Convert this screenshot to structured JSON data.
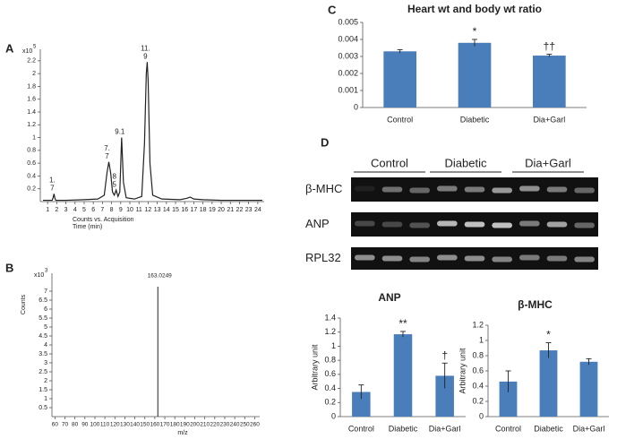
{
  "labels": [
    "A",
    "B",
    "C",
    "D"
  ],
  "chart_data": [
    {
      "type": "line",
      "y_multiplier": {
        "base": "x10",
        "exponent": "5"
      },
      "xlabel": [
        "Counts vs. Acquisition",
        "Time (min)"
      ],
      "series": [
        {
          "color": "#222222",
          "x": [
            0.5,
            1.5,
            1.6,
            1.7,
            1.8,
            1.9,
            3,
            5,
            6.5,
            7.2,
            7.5,
            7.7,
            7.9,
            8.1,
            8.3,
            8.5,
            8.7,
            8.9,
            9.1,
            9.3,
            9.6,
            10.5,
            11.3,
            11.6,
            11.8,
            11.9,
            12.0,
            12.2,
            12.5,
            13.5,
            15.5,
            16.2,
            16.6,
            17.0,
            18,
            20,
            22,
            24.5
          ],
          "values": [
            0.02,
            0.02,
            0.06,
            0.12,
            0.05,
            0.02,
            0.02,
            0.03,
            0.04,
            0.1,
            0.45,
            0.62,
            0.45,
            0.15,
            0.1,
            0.18,
            0.08,
            0.15,
            1.0,
            0.3,
            0.06,
            0.04,
            0.08,
            0.9,
            2.0,
            2.18,
            1.9,
            0.6,
            0.1,
            0.04,
            0.03,
            0.05,
            0.07,
            0.04,
            0.03,
            0.02,
            0.02,
            0.02
          ]
        }
      ],
      "annotations": [
        {
          "text": [
            "1.",
            "7"
          ],
          "x": 1.7
        },
        {
          "text": [
            "7.",
            "7"
          ],
          "x": 7.7
        },
        {
          "text": [
            "8",
            "5"
          ],
          "x": 8.5
        },
        {
          "text": [
            "9.1"
          ],
          "x": 9.1
        },
        {
          "text": [
            "11.",
            "9"
          ],
          "x": 11.9
        }
      ],
      "xlim": [
        0.2,
        24.7
      ],
      "ylim": [
        0,
        2.38
      ],
      "xticks": [
        1,
        2,
        3,
        4,
        5,
        6,
        7,
        8,
        9,
        10,
        11,
        12,
        13,
        14,
        15,
        16,
        17,
        18,
        19,
        20,
        21,
        22,
        23,
        24
      ],
      "yticks": [
        0.2,
        0.4,
        0.6,
        0.8,
        1,
        1.2,
        1.4,
        1.6,
        1.8,
        2,
        2.2
      ]
    },
    {
      "type": "stem",
      "y_multiplier": {
        "base": "x10",
        "exponent": "3"
      },
      "xlabel": "m/z",
      "ylabel": "Counts",
      "x": [
        163.0249
      ],
      "values": [
        7.25
      ],
      "color": "#222222",
      "xlim": [
        57,
        265
      ],
      "ylim": [
        0,
        8
      ],
      "xticks": [
        60,
        70,
        80,
        90,
        100,
        110,
        120,
        130,
        140,
        150,
        160,
        170,
        180,
        190,
        200,
        210,
        220,
        230,
        240,
        250,
        260
      ],
      "yticks": [
        0.5,
        1,
        1.5,
        2,
        2.5,
        3,
        3.5,
        4,
        4.5,
        5,
        5.5,
        6,
        6.5,
        7
      ]
    },
    {
      "type": "bar",
      "title": "Heart wt and body wt ratio",
      "color": "#4a7ebb",
      "categories": [
        "Control",
        "Diabetic",
        "Dia+Garl"
      ],
      "values": [
        0.0033,
        0.0038,
        0.00305
      ],
      "errors": [
        0.0001,
        0.0002,
        8e-05
      ],
      "annotations": [
        {
          "text": "*",
          "x": "Diabetic"
        },
        {
          "text": "††",
          "x": "Dia+Garl"
        }
      ],
      "ylim": [
        0,
        0.005
      ],
      "yticks": [
        0,
        0.001,
        0.002,
        0.003,
        0.004,
        0.005
      ]
    },
    {
      "type": "bar",
      "title": "ANP",
      "ylabel": "Arbitrary unit",
      "color": "#4a7ebb",
      "categories": [
        "Control",
        "Diabetic",
        "Dia+Garl"
      ],
      "values": [
        0.35,
        1.17,
        0.58
      ],
      "errors": [
        0.1,
        0.04,
        0.18
      ],
      "annotations": [
        {
          "text": "**",
          "x": "Diabetic"
        },
        {
          "text": "†",
          "x": "Dia+Garl"
        }
      ],
      "ylim": [
        0,
        1.4
      ],
      "yticks": [
        0,
        0.2,
        0.4,
        0.6,
        0.8,
        1,
        1.2,
        1.4
      ]
    },
    {
      "type": "bar",
      "title": "β-MHC",
      "ylabel": "Arbitrary unit",
      "color": "#4a7ebb",
      "categories": [
        "Control",
        "Diabetic",
        "Dia+Garl"
      ],
      "values": [
        0.46,
        0.87,
        0.72
      ],
      "errors": [
        0.14,
        0.1,
        0.04
      ],
      "annotations": [
        {
          "text": "*",
          "x": "Diabetic"
        }
      ],
      "ylim": [
        0,
        1.2
      ],
      "yticks": [
        0,
        0.2,
        0.4,
        0.6,
        0.8,
        1,
        1.2
      ]
    }
  ],
  "gel": {
    "groups": [
      "Control",
      "Diabetic",
      "Dia+Garl"
    ],
    "rows": [
      "β-MHC",
      "ANP",
      "RPL32"
    ]
  }
}
